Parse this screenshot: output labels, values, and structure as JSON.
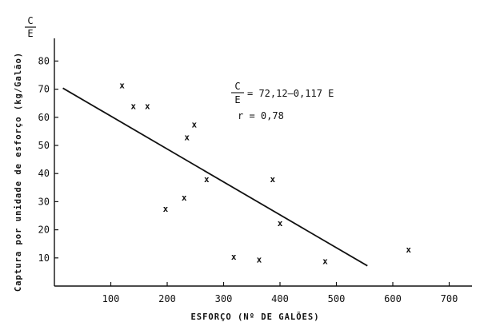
{
  "chart_data": {
    "type": "scatter",
    "title": "",
    "xlabel": "ESFORÇO (Nº DE GALÕES)",
    "ylabel": "Captura por unidade de esforço (kg/Galão)",
    "ylabel_top": {
      "numerator": "C",
      "denominator": "E"
    },
    "xlim": [
      0,
      750
    ],
    "ylim": [
      0,
      90
    ],
    "x_ticks": [
      "100",
      "200",
      "300",
      "400",
      "500",
      "600",
      "700"
    ],
    "y_ticks": [
      "10",
      "20",
      "30",
      "40",
      "50",
      "60",
      "70",
      "80"
    ],
    "grid": false,
    "legend": "none",
    "marker": "x",
    "series": [
      {
        "points": [
          {
            "x": 120,
            "y": 71.5
          },
          {
            "x": 140,
            "y": 64
          },
          {
            "x": 165,
            "y": 64
          },
          {
            "x": 197,
            "y": 27.5
          },
          {
            "x": 230,
            "y": 31.5
          },
          {
            "x": 235,
            "y": 53
          },
          {
            "x": 248,
            "y": 57.5
          },
          {
            "x": 270,
            "y": 38
          },
          {
            "x": 318,
            "y": 10.5
          },
          {
            "x": 363,
            "y": 9.5
          },
          {
            "x": 387,
            "y": 38
          },
          {
            "x": 400,
            "y": 22.5
          },
          {
            "x": 480,
            "y": 9
          },
          {
            "x": 628,
            "y": 13
          }
        ]
      }
    ],
    "regression": {
      "x_start": 15,
      "x_end": 555,
      "intercept": 72.12,
      "slope": -0.117
    },
    "annotations": {
      "eq_numerator": "C",
      "eq_denominator": "E",
      "eq_rhs": "= 72,12–0,117 E",
      "r_text": "r = 0,78"
    }
  }
}
